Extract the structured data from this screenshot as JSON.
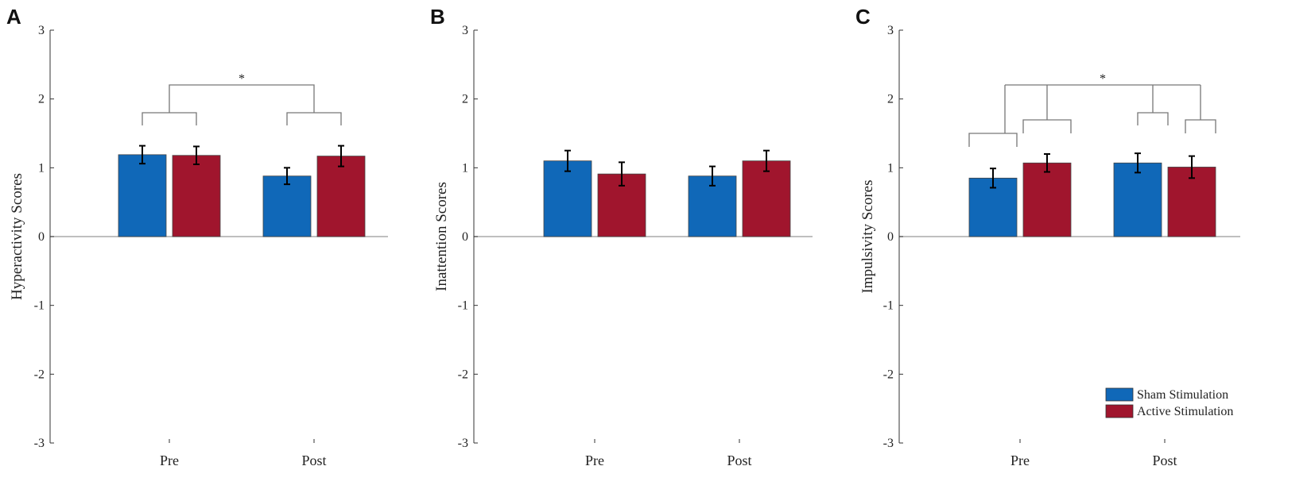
{
  "colors": {
    "sham": "#1068b8",
    "active": "#a0152d",
    "axis": "#333333",
    "bracket": "#777777",
    "zeroline": "#aaaaaa"
  },
  "legend": {
    "items": [
      {
        "label": "Sham Stimulation",
        "color": "#1068b8"
      },
      {
        "label": "Active Stimulation",
        "color": "#a0152d"
      }
    ],
    "placement": "bottom-right of panel C"
  },
  "chart_data": [
    {
      "panel": "A",
      "type": "bar",
      "categories": [
        "Pre",
        "Post"
      ],
      "series": [
        {
          "name": "Sham Stimulation",
          "values": [
            1.19,
            0.88
          ],
          "errors": [
            0.13,
            0.12
          ]
        },
        {
          "name": "Active Stimulation",
          "values": [
            1.18,
            1.17
          ],
          "errors": [
            0.13,
            0.15
          ]
        }
      ],
      "ylabel": "Hyperactivity Scores",
      "ylim": [
        -3,
        3
      ],
      "yticks": [
        "-3",
        "-2",
        "-1",
        "0",
        "1",
        "2",
        "3"
      ],
      "significance": "*"
    },
    {
      "panel": "B",
      "type": "bar",
      "categories": [
        "Pre",
        "Post"
      ],
      "series": [
        {
          "name": "Sham Stimulation",
          "values": [
            1.1,
            0.88
          ],
          "errors": [
            0.15,
            0.14
          ]
        },
        {
          "name": "Active Stimulation",
          "values": [
            0.91,
            1.1
          ],
          "errors": [
            0.17,
            0.15
          ]
        }
      ],
      "ylabel": "Inattention Scores",
      "ylim": [
        -3,
        3
      ],
      "yticks": [
        "-3",
        "-2",
        "-1",
        "0",
        "1",
        "2",
        "3"
      ],
      "significance": ""
    },
    {
      "panel": "C",
      "type": "bar",
      "categories": [
        "Pre",
        "Post"
      ],
      "series": [
        {
          "name": "Sham Stimulation",
          "values": [
            0.85,
            1.07
          ],
          "errors": [
            0.14,
            0.14
          ]
        },
        {
          "name": "Active Stimulation",
          "values": [
            1.07,
            1.01
          ],
          "errors": [
            0.13,
            0.16
          ]
        }
      ],
      "ylabel": "Impulsivity Scores",
      "ylim": [
        -3,
        3
      ],
      "yticks": [
        "-3",
        "-2",
        "-1",
        "0",
        "1",
        "2",
        "3"
      ],
      "significance": "*"
    }
  ]
}
